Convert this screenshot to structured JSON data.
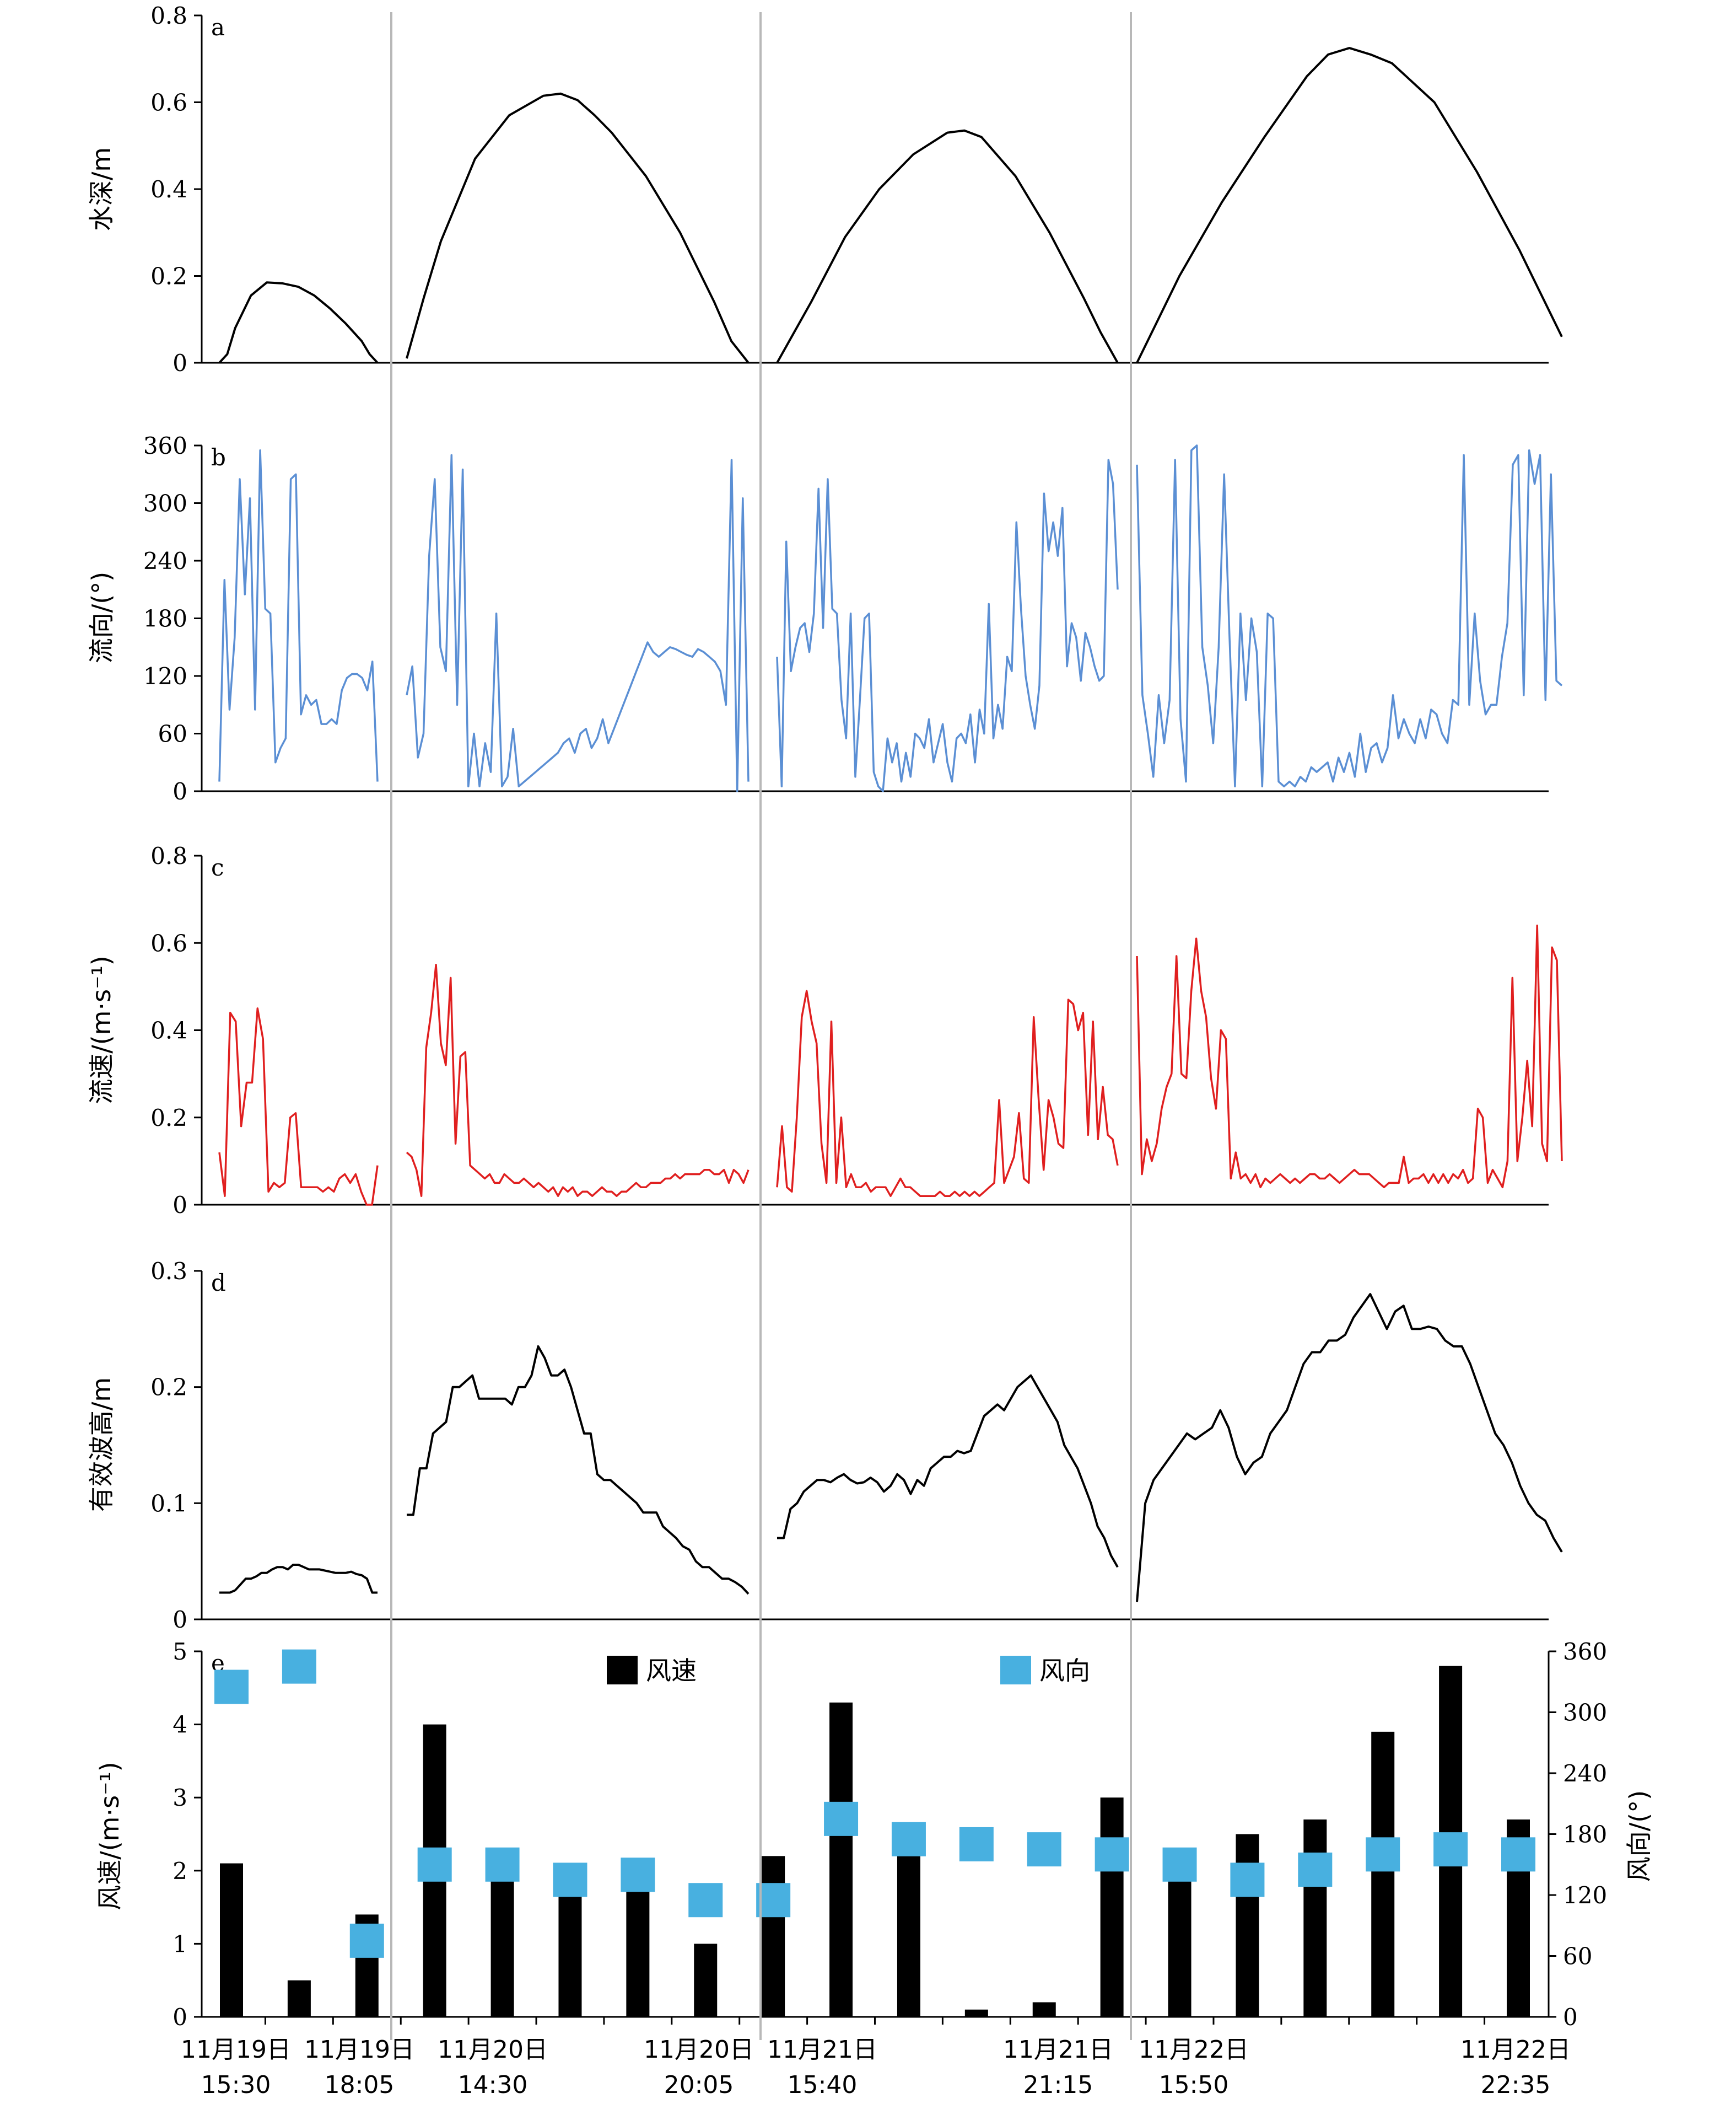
{
  "colors": {
    "depth": "#000000",
    "direction": "#5b8fd4",
    "speed": "#e01f1f",
    "wave": "#000000",
    "wind_speed": "#000000",
    "wind_dir": "#48b0e0",
    "divider": "#b8b8b8"
  },
  "chart_data": [
    {
      "panel": "a",
      "type": "line",
      "ylabel": "水深/m",
      "ylim": [
        0,
        0.8
      ],
      "yticks": [
        "0",
        "0.2",
        "0.4",
        "0.6",
        "0.8"
      ],
      "segments": [
        {
          "x": [
            0.0,
            0.05,
            0.1,
            0.2,
            0.3,
            0.4,
            0.5,
            0.6,
            0.7,
            0.8,
            0.9,
            0.95,
            1.0
          ],
          "y": [
            0.0,
            0.02,
            0.08,
            0.155,
            0.185,
            0.183,
            0.175,
            0.155,
            0.125,
            0.09,
            0.05,
            0.02,
            0.0
          ]
        },
        {
          "x": [
            0.0,
            0.05,
            0.1,
            0.2,
            0.3,
            0.4,
            0.45,
            0.5,
            0.55,
            0.6,
            0.7,
            0.8,
            0.9,
            0.95,
            1.0
          ],
          "y": [
            0.01,
            0.15,
            0.28,
            0.47,
            0.57,
            0.615,
            0.62,
            0.605,
            0.57,
            0.53,
            0.43,
            0.3,
            0.14,
            0.05,
            0.0
          ]
        },
        {
          "x": [
            0.0,
            0.05,
            0.1,
            0.2,
            0.3,
            0.4,
            0.5,
            0.55,
            0.6,
            0.7,
            0.8,
            0.9,
            0.95,
            1.0
          ],
          "y": [
            0.0,
            0.07,
            0.14,
            0.29,
            0.4,
            0.48,
            0.53,
            0.535,
            0.52,
            0.43,
            0.3,
            0.15,
            0.07,
            0.0
          ]
        },
        {
          "x": [
            0.0,
            0.05,
            0.1,
            0.2,
            0.3,
            0.4,
            0.45,
            0.5,
            0.55,
            0.6,
            0.7,
            0.8,
            0.9,
            1.0
          ],
          "y": [
            0.0,
            0.1,
            0.2,
            0.37,
            0.52,
            0.66,
            0.71,
            0.725,
            0.71,
            0.69,
            0.6,
            0.44,
            0.26,
            0.06
          ]
        }
      ]
    },
    {
      "panel": "b",
      "type": "line",
      "ylabel": "流向/(°)",
      "ylim": [
        0,
        360
      ],
      "yticks": [
        "0",
        "60",
        "120",
        "180",
        "240",
        "300",
        "360"
      ],
      "segments": [
        {
          "y": [
            10,
            220,
            85,
            160,
            325,
            205,
            305,
            85,
            355,
            190,
            185,
            30,
            45,
            55,
            325,
            330,
            80,
            100,
            90,
            95,
            70,
            70,
            75,
            70,
            105,
            118,
            122,
            122,
            118,
            105,
            135,
            10
          ]
        },
        {
          "y": [
            100,
            130,
            35,
            60,
            245,
            325,
            150,
            125,
            350,
            90,
            335,
            5,
            60,
            5,
            50,
            20,
            185,
            5,
            15,
            65,
            5,
            10,
            15,
            20,
            25,
            30,
            35,
            40,
            50,
            55,
            40,
            60,
            65,
            45,
            55,
            75,
            50,
            65,
            80,
            95,
            110,
            125,
            140,
            155,
            145,
            140,
            145,
            150,
            148,
            145,
            142,
            140,
            148,
            145,
            140,
            135,
            125,
            90,
            345,
            0,
            305,
            10
          ]
        },
        {
          "y": [
            140,
            5,
            260,
            125,
            150,
            170,
            175,
            145,
            185,
            315,
            170,
            325,
            190,
            185,
            95,
            55,
            185,
            15,
            95,
            180,
            185,
            20,
            5,
            0,
            55,
            30,
            50,
            10,
            40,
            15,
            60,
            55,
            45,
            75,
            30,
            50,
            70,
            30,
            10,
            55,
            60,
            50,
            80,
            30,
            85,
            60,
            195,
            55,
            90,
            65,
            140,
            125,
            280,
            190,
            120,
            90,
            65,
            110,
            310,
            250,
            280,
            245,
            295,
            130,
            175,
            160,
            115,
            165,
            150,
            130,
            115,
            120,
            345,
            320,
            210
          ]
        },
        {
          "y": [
            340,
            100,
            60,
            15,
            100,
            50,
            95,
            345,
            75,
            10,
            355,
            360,
            150,
            110,
            50,
            150,
            330,
            160,
            5,
            185,
            95,
            180,
            145,
            5,
            185,
            180,
            10,
            5,
            10,
            5,
            15,
            10,
            25,
            20,
            25,
            30,
            10,
            35,
            20,
            40,
            15,
            60,
            20,
            45,
            50,
            30,
            45,
            100,
            55,
            75,
            60,
            50,
            75,
            55,
            85,
            80,
            60,
            50,
            95,
            90,
            350,
            90,
            185,
            115,
            80,
            90,
            90,
            140,
            175,
            340,
            350,
            100,
            355,
            320,
            350,
            95,
            330,
            115,
            110
          ]
        }
      ]
    },
    {
      "panel": "c",
      "type": "line",
      "ylabel": "流速/(m·s⁻¹)",
      "ylim": [
        0,
        0.8
      ],
      "yticks": [
        "0",
        "0.2",
        "0.4",
        "0.6",
        "0.8"
      ],
      "segments": [
        {
          "y": [
            0.12,
            0.02,
            0.44,
            0.42,
            0.18,
            0.28,
            0.28,
            0.45,
            0.38,
            0.03,
            0.05,
            0.04,
            0.05,
            0.2,
            0.21,
            0.04,
            0.04,
            0.04,
            0.04,
            0.03,
            0.04,
            0.03,
            0.06,
            0.07,
            0.05,
            0.07,
            0.03,
            0.0,
            0.0,
            0.09
          ]
        },
        {
          "y": [
            0.12,
            0.11,
            0.08,
            0.02,
            0.36,
            0.44,
            0.55,
            0.37,
            0.32,
            0.52,
            0.14,
            0.34,
            0.35,
            0.09,
            0.08,
            0.07,
            0.06,
            0.07,
            0.05,
            0.05,
            0.07,
            0.06,
            0.05,
            0.05,
            0.06,
            0.05,
            0.04,
            0.05,
            0.04,
            0.03,
            0.04,
            0.02,
            0.04,
            0.03,
            0.04,
            0.02,
            0.03,
            0.03,
            0.02,
            0.03,
            0.04,
            0.03,
            0.03,
            0.02,
            0.03,
            0.03,
            0.04,
            0.05,
            0.04,
            0.04,
            0.05,
            0.05,
            0.05,
            0.06,
            0.06,
            0.07,
            0.06,
            0.07,
            0.07,
            0.07,
            0.07,
            0.08,
            0.08,
            0.07,
            0.07,
            0.08,
            0.05,
            0.08,
            0.07,
            0.05,
            0.08
          ]
        },
        {
          "y": [
            0.04,
            0.18,
            0.04,
            0.03,
            0.2,
            0.43,
            0.49,
            0.42,
            0.37,
            0.14,
            0.05,
            0.42,
            0.05,
            0.2,
            0.04,
            0.07,
            0.04,
            0.04,
            0.05,
            0.03,
            0.04,
            0.04,
            0.04,
            0.02,
            0.04,
            0.06,
            0.04,
            0.04,
            0.03,
            0.02,
            0.02,
            0.02,
            0.02,
            0.03,
            0.02,
            0.02,
            0.03,
            0.02,
            0.03,
            0.02,
            0.03,
            0.02,
            0.03,
            0.04,
            0.05,
            0.24,
            0.05,
            0.08,
            0.11,
            0.21,
            0.06,
            0.05,
            0.43,
            0.24,
            0.08,
            0.24,
            0.2,
            0.14,
            0.13,
            0.47,
            0.46,
            0.4,
            0.44,
            0.16,
            0.42,
            0.15,
            0.27,
            0.16,
            0.15,
            0.09
          ]
        },
        {
          "y": [
            0.57,
            0.07,
            0.15,
            0.1,
            0.14,
            0.22,
            0.27,
            0.3,
            0.57,
            0.3,
            0.29,
            0.49,
            0.61,
            0.49,
            0.43,
            0.29,
            0.22,
            0.4,
            0.38,
            0.06,
            0.12,
            0.06,
            0.07,
            0.05,
            0.07,
            0.04,
            0.06,
            0.05,
            0.06,
            0.07,
            0.06,
            0.05,
            0.06,
            0.05,
            0.06,
            0.07,
            0.07,
            0.06,
            0.06,
            0.07,
            0.06,
            0.05,
            0.06,
            0.07,
            0.08,
            0.07,
            0.07,
            0.07,
            0.06,
            0.05,
            0.04,
            0.05,
            0.05,
            0.05,
            0.11,
            0.05,
            0.06,
            0.06,
            0.07,
            0.05,
            0.07,
            0.05,
            0.07,
            0.05,
            0.07,
            0.06,
            0.08,
            0.05,
            0.06,
            0.22,
            0.2,
            0.05,
            0.08,
            0.06,
            0.04,
            0.1,
            0.52,
            0.1,
            0.2,
            0.33,
            0.18,
            0.64,
            0.14,
            0.1,
            0.59,
            0.56,
            0.1
          ]
        }
      ]
    },
    {
      "panel": "d",
      "type": "line",
      "ylabel": "有效波高/m",
      "ylim": [
        0,
        0.3
      ],
      "yticks": [
        "0",
        "0.1",
        "0.2",
        "0.3"
      ],
      "segments": [
        {
          "y": [
            0.023,
            0.023,
            0.023,
            0.025,
            0.03,
            0.035,
            0.035,
            0.037,
            0.04,
            0.04,
            0.043,
            0.045,
            0.045,
            0.043,
            0.047,
            0.047,
            0.045,
            0.043,
            0.043,
            0.043,
            0.042,
            0.041,
            0.04,
            0.04,
            0.04,
            0.041,
            0.039,
            0.038,
            0.035,
            0.023,
            0.023
          ]
        },
        {
          "y": [
            0.09,
            0.09,
            0.13,
            0.13,
            0.16,
            0.165,
            0.17,
            0.2,
            0.2,
            0.205,
            0.21,
            0.19,
            0.19,
            0.19,
            0.19,
            0.19,
            0.185,
            0.2,
            0.2,
            0.21,
            0.235,
            0.225,
            0.21,
            0.21,
            0.215,
            0.2,
            0.18,
            0.16,
            0.16,
            0.125,
            0.12,
            0.12,
            0.115,
            0.11,
            0.105,
            0.1,
            0.092,
            0.092,
            0.092,
            0.08,
            0.075,
            0.07,
            0.063,
            0.06,
            0.05,
            0.045,
            0.045,
            0.04,
            0.035,
            0.035,
            0.032,
            0.028,
            0.022
          ]
        },
        {
          "y": [
            0.07,
            0.07,
            0.095,
            0.1,
            0.11,
            0.115,
            0.12,
            0.12,
            0.118,
            0.122,
            0.125,
            0.12,
            0.117,
            0.118,
            0.122,
            0.118,
            0.11,
            0.115,
            0.125,
            0.12,
            0.108,
            0.12,
            0.115,
            0.13,
            0.135,
            0.14,
            0.14,
            0.145,
            0.143,
            0.145,
            0.16,
            0.175,
            0.18,
            0.185,
            0.18,
            0.19,
            0.2,
            0.205,
            0.21,
            0.2,
            0.19,
            0.18,
            0.17,
            0.15,
            0.14,
            0.13,
            0.115,
            0.1,
            0.08,
            0.07,
            0.055,
            0.045
          ]
        },
        {
          "y": [
            0.015,
            0.1,
            0.12,
            0.13,
            0.14,
            0.15,
            0.16,
            0.155,
            0.16,
            0.165,
            0.18,
            0.165,
            0.14,
            0.125,
            0.135,
            0.14,
            0.16,
            0.17,
            0.18,
            0.2,
            0.22,
            0.23,
            0.23,
            0.24,
            0.24,
            0.245,
            0.26,
            0.27,
            0.28,
            0.265,
            0.25,
            0.265,
            0.27,
            0.25,
            0.25,
            0.252,
            0.25,
            0.24,
            0.235,
            0.235,
            0.22,
            0.2,
            0.18,
            0.16,
            0.15,
            0.135,
            0.115,
            0.1,
            0.09,
            0.085,
            0.07,
            0.058
          ]
        }
      ]
    },
    {
      "panel": "e",
      "type": "bar",
      "ylabel": "风速/(m·s⁻¹)",
      "y2label": "风向/(°)",
      "ylim": [
        0,
        5
      ],
      "y2lim": [
        0,
        360
      ],
      "yticks": [
        "0",
        "1",
        "2",
        "3",
        "4",
        "5"
      ],
      "y2ticks": [
        "0",
        "60",
        "120",
        "180",
        "240",
        "300",
        "360"
      ],
      "legend": [
        "风速",
        "风向"
      ],
      "wind_speed": [
        2.1,
        0.5,
        1.4,
        4.0,
        2.1,
        1.8,
        1.8,
        1.0,
        2.2,
        4.3,
        2.2,
        0.1,
        0.2,
        3.0,
        2.0,
        2.5,
        2.7,
        3.9,
        4.8,
        2.7
      ],
      "wind_direction": [
        325,
        345,
        75,
        150,
        150,
        135,
        140,
        115,
        115,
        195,
        175,
        170,
        165,
        160,
        150,
        135,
        145,
        160,
        165,
        160
      ],
      "x_tick_labels": [
        [
          "11月19日",
          "15:30"
        ],
        [
          "11月19日",
          "18:05"
        ],
        [
          "11月20日",
          "14:30"
        ],
        [
          "11月20日",
          "20:05"
        ],
        [
          "11月21日",
          "15:40"
        ],
        [
          "11月21日",
          "21:15"
        ],
        [
          "11月22日",
          "15:50"
        ],
        [
          "11月22日",
          "22:35"
        ]
      ]
    }
  ],
  "panel_labels": [
    "a",
    "b",
    "c",
    "d",
    "e"
  ]
}
